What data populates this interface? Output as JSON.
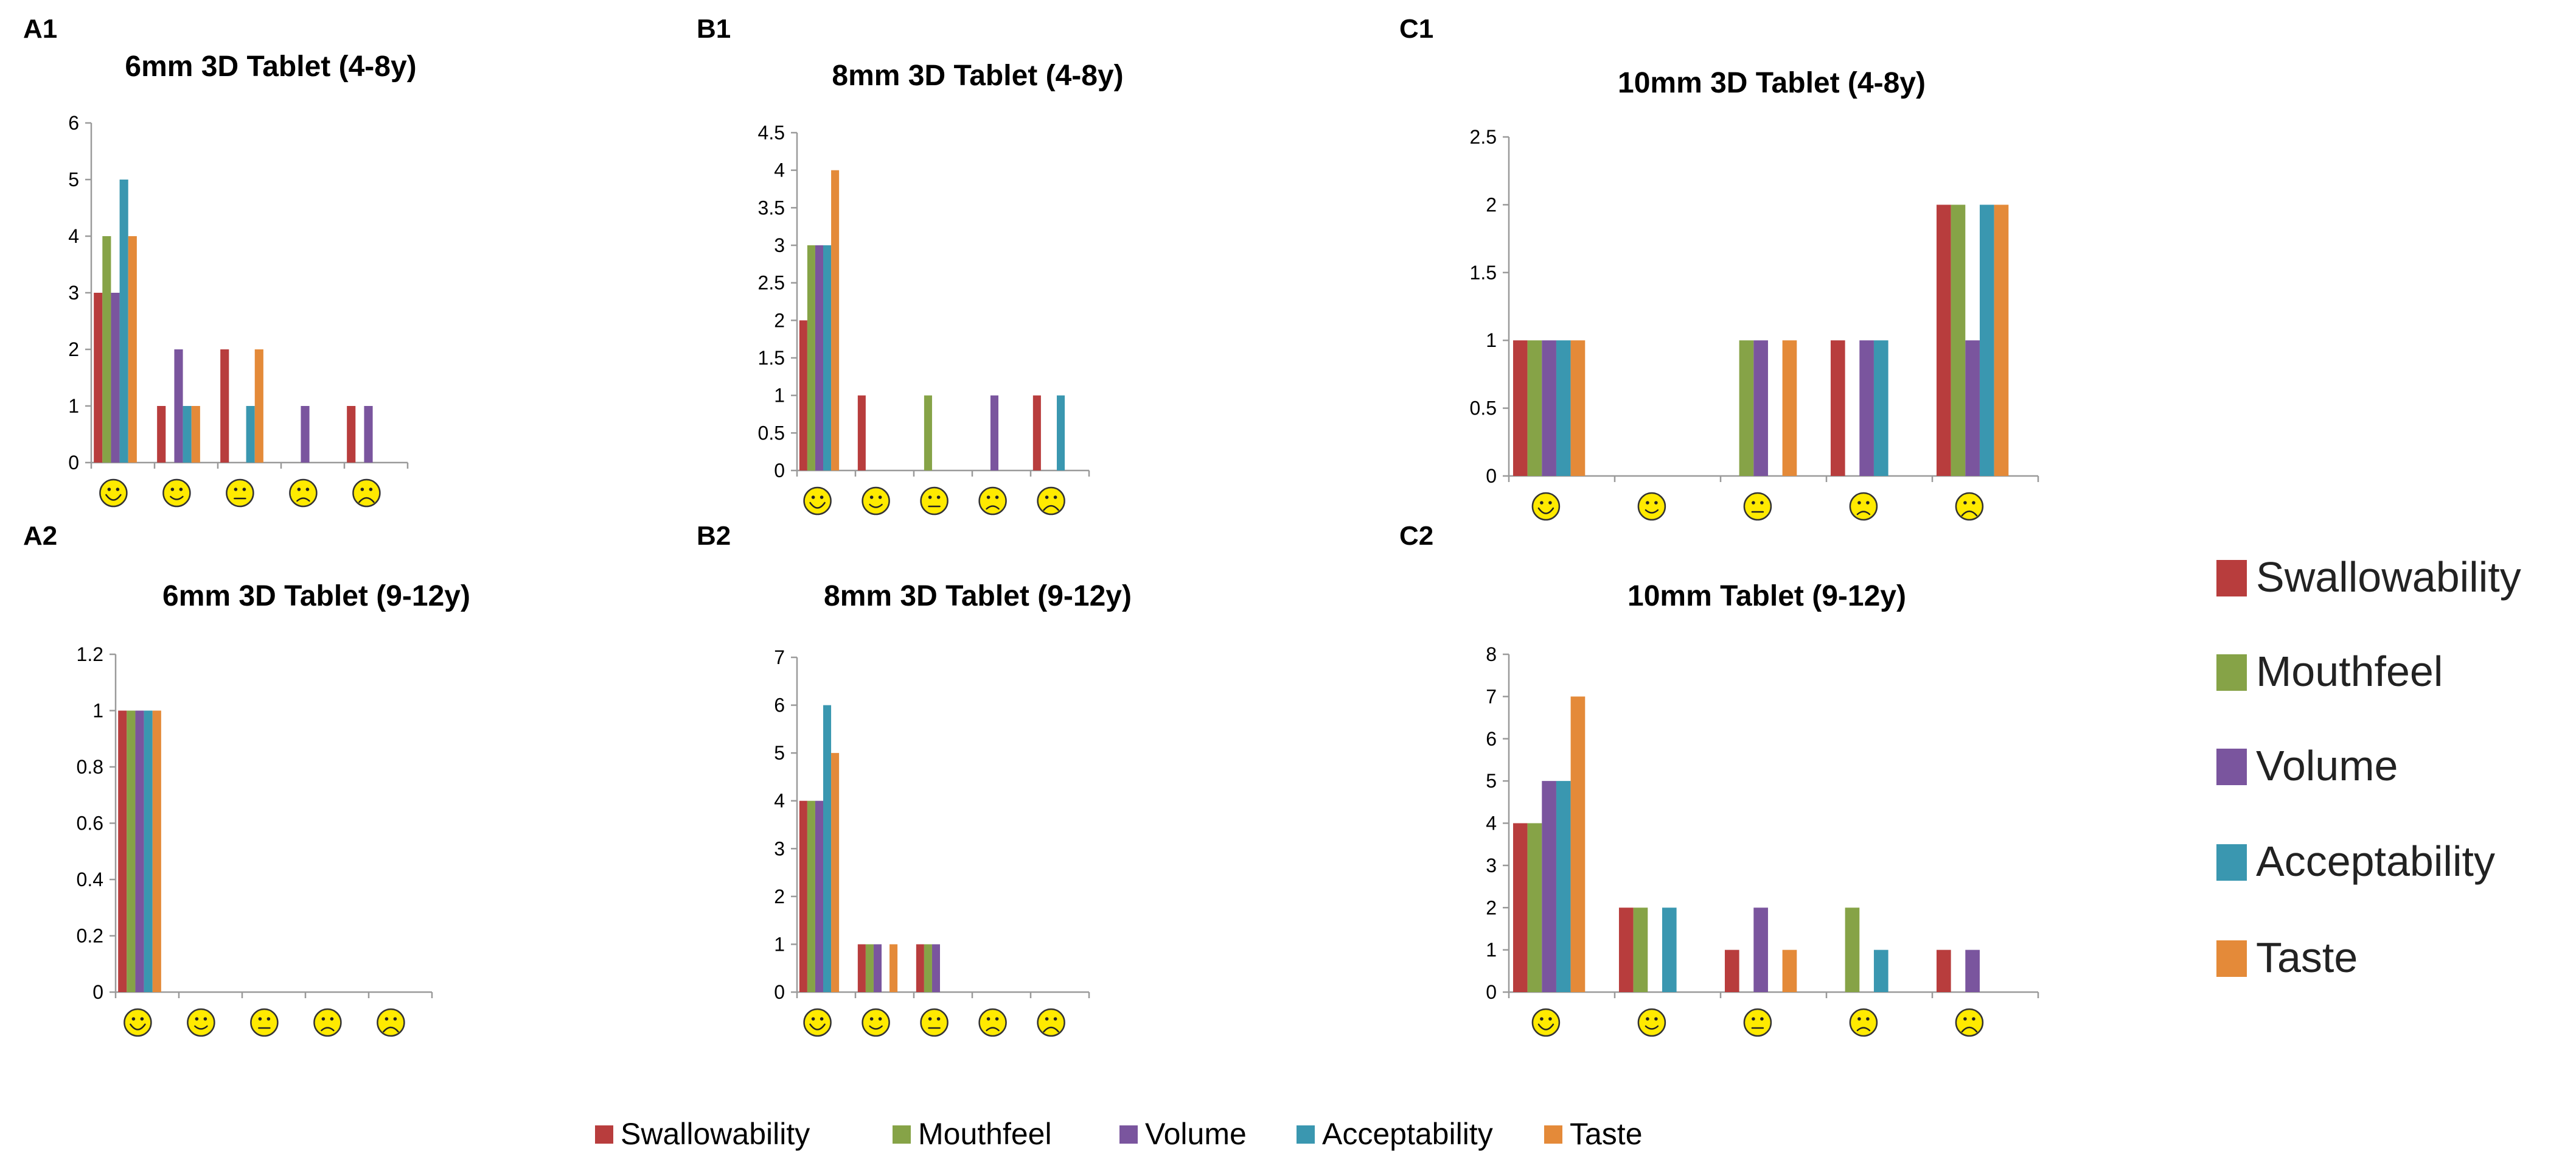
{
  "series_names": [
    "Swallowability",
    "Mouthfeel",
    "Volume",
    "Acceptability",
    "Taste"
  ],
  "series_colors": [
    "#b83d3d",
    "#86a347",
    "#7a559e",
    "#3a97b0",
    "#e48a39"
  ],
  "face_icons": [
    "very-happy-face-icon",
    "happy-face-icon",
    "neutral-face-icon",
    "sad-face-icon",
    "very-sad-face-icon"
  ],
  "chart_data": [
    {
      "type": "bar",
      "panel_label": "A1",
      "title": "6mm 3D Tablet (4-8y)",
      "categories": [
        "very happy",
        "happy",
        "neutral",
        "sad",
        "very sad"
      ],
      "ylim": [
        0,
        6
      ],
      "yticks": [
        "0",
        "1",
        "2",
        "3",
        "4",
        "5",
        "6"
      ],
      "series": [
        {
          "name": "Swallowability",
          "values": [
            3,
            1,
            2,
            0,
            1
          ]
        },
        {
          "name": "Mouthfeel",
          "values": [
            4,
            0,
            0,
            0,
            0
          ]
        },
        {
          "name": "Volume",
          "values": [
            3,
            2,
            0,
            1,
            1
          ]
        },
        {
          "name": "Acceptability",
          "values": [
            5,
            1,
            1,
            0,
            0
          ]
        },
        {
          "name": "Taste",
          "values": [
            4,
            1,
            2,
            0,
            0
          ]
        }
      ]
    },
    {
      "type": "bar",
      "panel_label": "B1",
      "title": "8mm 3D Tablet (4-8y)",
      "categories": [
        "very happy",
        "happy",
        "neutral",
        "sad",
        "very sad"
      ],
      "ylim": [
        0,
        4.5
      ],
      "yticks": [
        "0",
        "0.5",
        "1",
        "1.5",
        "2",
        "2.5",
        "3",
        "3.5",
        "4",
        "4.5"
      ],
      "series": [
        {
          "name": "Swallowability",
          "values": [
            2,
            1,
            0,
            0,
            1
          ]
        },
        {
          "name": "Mouthfeel",
          "values": [
            3,
            0,
            1,
            0,
            0
          ]
        },
        {
          "name": "Volume",
          "values": [
            3,
            0,
            0,
            1,
            0
          ]
        },
        {
          "name": "Acceptability",
          "values": [
            3,
            0,
            0,
            0,
            1
          ]
        },
        {
          "name": "Taste",
          "values": [
            4,
            0,
            0,
            0,
            0
          ]
        }
      ]
    },
    {
      "type": "bar",
      "panel_label": "C1",
      "title": "10mm 3D Tablet (4-8y)",
      "categories": [
        "very happy",
        "happy",
        "neutral",
        "sad",
        "very sad"
      ],
      "ylim": [
        0,
        2.5
      ],
      "yticks": [
        "0",
        "0.5",
        "1",
        "1.5",
        "2",
        "2.5"
      ],
      "series": [
        {
          "name": "Swallowability",
          "values": [
            1,
            0,
            0,
            1,
            2
          ]
        },
        {
          "name": "Mouthfeel",
          "values": [
            1,
            0,
            1,
            0,
            2
          ]
        },
        {
          "name": "Volume",
          "values": [
            1,
            0,
            1,
            1,
            1
          ]
        },
        {
          "name": "Acceptability",
          "values": [
            1,
            0,
            0,
            1,
            2
          ]
        },
        {
          "name": "Taste",
          "values": [
            1,
            0,
            1,
            0,
            2
          ]
        }
      ]
    },
    {
      "type": "bar",
      "panel_label": "A2",
      "title": "6mm 3D Tablet (9-12y)",
      "categories": [
        "very happy",
        "happy",
        "neutral",
        "sad",
        "very sad"
      ],
      "ylim": [
        0,
        1.2
      ],
      "yticks": [
        "0",
        "0.2",
        "0.4",
        "0.6",
        "0.8",
        "1",
        "1.2"
      ],
      "series": [
        {
          "name": "Swallowability",
          "values": [
            1,
            0,
            0,
            0,
            0
          ]
        },
        {
          "name": "Mouthfeel",
          "values": [
            1,
            0,
            0,
            0,
            0
          ]
        },
        {
          "name": "Volume",
          "values": [
            1,
            0,
            0,
            0,
            0
          ]
        },
        {
          "name": "Acceptability",
          "values": [
            1,
            0,
            0,
            0,
            0
          ]
        },
        {
          "name": "Taste",
          "values": [
            1,
            0,
            0,
            0,
            0
          ]
        }
      ]
    },
    {
      "type": "bar",
      "panel_label": "B2",
      "title": "8mm 3D Tablet (9-12y)",
      "categories": [
        "very happy",
        "happy",
        "neutral",
        "sad",
        "very sad"
      ],
      "ylim": [
        0,
        7
      ],
      "yticks": [
        "0",
        "1",
        "2",
        "3",
        "4",
        "5",
        "6",
        "7"
      ],
      "series": [
        {
          "name": "Swallowability",
          "values": [
            4,
            1,
            1,
            0,
            0
          ]
        },
        {
          "name": "Mouthfeel",
          "values": [
            4,
            1,
            1,
            0,
            0
          ]
        },
        {
          "name": "Volume",
          "values": [
            4,
            1,
            1,
            0,
            0
          ]
        },
        {
          "name": "Acceptability",
          "values": [
            6,
            0,
            0,
            0,
            0
          ]
        },
        {
          "name": "Taste",
          "values": [
            5,
            1,
            0,
            0,
            0
          ]
        }
      ]
    },
    {
      "type": "bar",
      "panel_label": "C2",
      "title": "10mm Tablet (9-12y)",
      "categories": [
        "very happy",
        "happy",
        "neutral",
        "sad",
        "very sad"
      ],
      "ylim": [
        0,
        8
      ],
      "yticks": [
        "0",
        "1",
        "2",
        "3",
        "4",
        "5",
        "6",
        "7",
        "8"
      ],
      "series": [
        {
          "name": "Swallowability",
          "values": [
            4,
            2,
            1,
            0,
            1
          ]
        },
        {
          "name": "Mouthfeel",
          "values": [
            4,
            2,
            0,
            2,
            0
          ]
        },
        {
          "name": "Volume",
          "values": [
            5,
            0,
            2,
            0,
            1
          ]
        },
        {
          "name": "Acceptability",
          "values": [
            5,
            2,
            0,
            1,
            0
          ]
        },
        {
          "name": "Taste",
          "values": [
            7,
            0,
            1,
            0,
            0
          ]
        }
      ]
    }
  ]
}
